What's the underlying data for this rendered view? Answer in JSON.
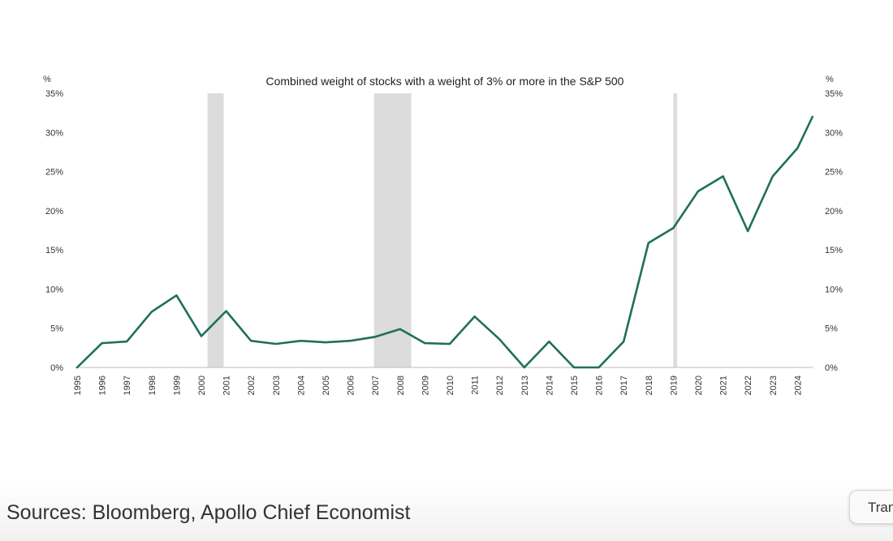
{
  "chart_data": {
    "type": "line",
    "title": "Combined weight of stocks with a weight of 3% or more in the S&P 500",
    "ylabel_left": "%",
    "ylabel_right": "%",
    "ylim": [
      0,
      35
    ],
    "y_ticks": [
      0,
      5,
      10,
      15,
      20,
      25,
      30,
      35
    ],
    "y_tick_labels": [
      "0%",
      "5%",
      "10%",
      "15%",
      "20%",
      "25%",
      "30%",
      "35%"
    ],
    "categories": [
      "1995",
      "1996",
      "1997",
      "1998",
      "1999",
      "2000",
      "2001",
      "2002",
      "2003",
      "2004",
      "2005",
      "2006",
      "2007",
      "2008",
      "2009",
      "2010",
      "2011",
      "2012",
      "2013",
      "2014",
      "2015",
      "2016",
      "2017",
      "2018",
      "2019",
      "2020",
      "2021",
      "2022",
      "2023",
      "2024"
    ],
    "series": [
      {
        "name": "Combined weight",
        "color": "#1f6f5c",
        "x": [
          0,
          1,
          2,
          3,
          4,
          5,
          6,
          7,
          8,
          9,
          10,
          11,
          12,
          13,
          14,
          15,
          16,
          17,
          18,
          19,
          20,
          21,
          22,
          23,
          24,
          25,
          26,
          27,
          28,
          29,
          29.6
        ],
        "values": [
          0.0,
          3.1,
          3.3,
          7.1,
          9.2,
          4.0,
          7.2,
          3.4,
          3.0,
          3.4,
          3.2,
          3.4,
          3.9,
          4.9,
          3.1,
          3.0,
          6.5,
          3.6,
          0.0,
          3.3,
          0.0,
          0.0,
          3.3,
          15.9,
          17.8,
          22.5,
          24.4,
          17.4,
          24.4,
          28.0,
          32.0
        ]
      }
    ],
    "recession_shading": [
      {
        "start": 5.25,
        "end": 5.9
      },
      {
        "start": 11.95,
        "end": 13.45
      },
      {
        "start": 24.0,
        "end": 24.15
      }
    ],
    "shading_color": "#dcdcdc",
    "grid": false,
    "legend": "none"
  },
  "source": "Sources: Bloomberg, Apollo Chief Economist",
  "translate_button": {
    "label": "Translate"
  }
}
